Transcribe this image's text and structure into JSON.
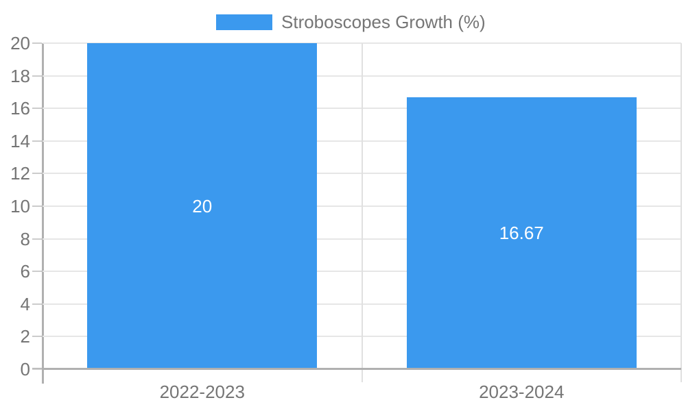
{
  "chart_data": {
    "type": "bar",
    "categories": [
      "2022-2023",
      "2023-2024"
    ],
    "values": [
      20,
      16.67
    ],
    "value_labels": [
      "20",
      "16.67"
    ],
    "series_name": "Stroboscopes Growth (%)",
    "ylim": [
      0,
      20
    ],
    "ytick_step": 2,
    "yticks": [
      0,
      2,
      4,
      6,
      8,
      10,
      12,
      14,
      16,
      18,
      20
    ],
    "grid": true,
    "legend_position": "top-center",
    "bar_width_fraction": 0.72
  },
  "style": {
    "bar_color": "#3B99EE",
    "bar_label_color": "#FFFFFF",
    "axis_text_color": "#757575",
    "legend_text_color": "#757575",
    "gridline_color": "#E6E6E6",
    "tick_color": "#CCCCCC",
    "divider_color": "#E0E0E0",
    "axis_line_color": "#B0B0B0",
    "background_color": "#FFFFFF"
  }
}
